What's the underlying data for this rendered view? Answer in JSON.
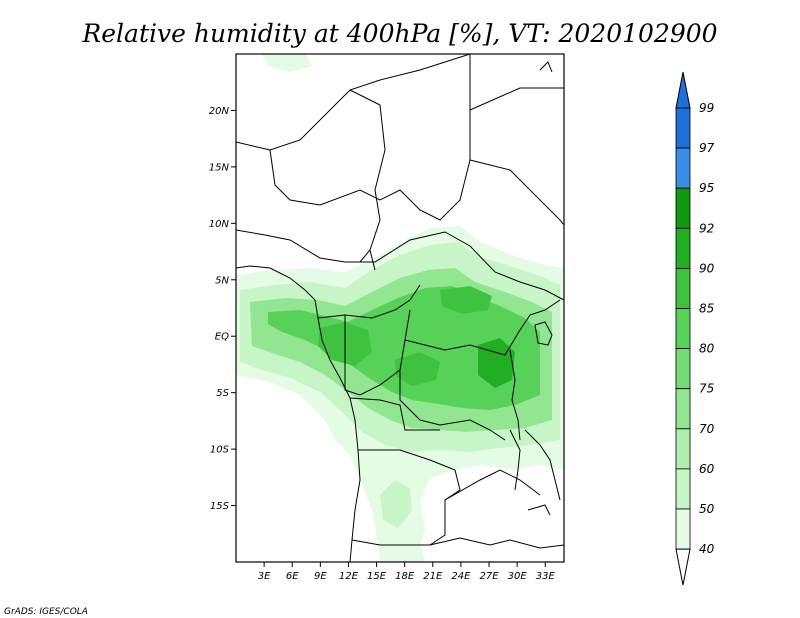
{
  "title": "Relative humidity at 400hPa [%], VT: 2020102900",
  "credit": "GrADS: IGES/COLA",
  "map": {
    "lon_range": [
      0,
      35
    ],
    "lat_range": [
      -20,
      25
    ],
    "lat_ticks": [
      {
        "value": 20,
        "label": "20N"
      },
      {
        "value": 15,
        "label": "15N"
      },
      {
        "value": 10,
        "label": "10N"
      },
      {
        "value": 5,
        "label": "5N"
      },
      {
        "value": 0,
        "label": "EQ"
      },
      {
        "value": -5,
        "label": "5S"
      },
      {
        "value": -10,
        "label": "10S"
      },
      {
        "value": -15,
        "label": "15S"
      }
    ],
    "lon_ticks": [
      {
        "value": 3,
        "label": "3E"
      },
      {
        "value": 6,
        "label": "6E"
      },
      {
        "value": 9,
        "label": "9E"
      },
      {
        "value": 12,
        "label": "12E"
      },
      {
        "value": 15,
        "label": "15E"
      },
      {
        "value": 18,
        "label": "18E"
      },
      {
        "value": 21,
        "label": "21E"
      },
      {
        "value": 24,
        "label": "24E"
      },
      {
        "value": 27,
        "label": "27E"
      },
      {
        "value": 30,
        "label": "30E"
      },
      {
        "value": 33,
        "label": "33E"
      }
    ]
  },
  "colorbar": {
    "levels": [
      "99",
      "97",
      "95",
      "92",
      "90",
      "85",
      "80",
      "75",
      "70",
      "60",
      "50",
      "40"
    ],
    "colors": [
      "#1e6fd6",
      "#3b8ee8",
      "#119a11",
      "#22ae22",
      "#3fc23f",
      "#57d157",
      "#73dd73",
      "#92e692",
      "#aeeeae",
      "#c8f5c8",
      "#e4fce4"
    ]
  },
  "colors": {
    "light": "#e4fce4",
    "pale": "#c8f5c8",
    "mid": "#92e692",
    "green": "#57d157",
    "deep": "#22ae22"
  }
}
